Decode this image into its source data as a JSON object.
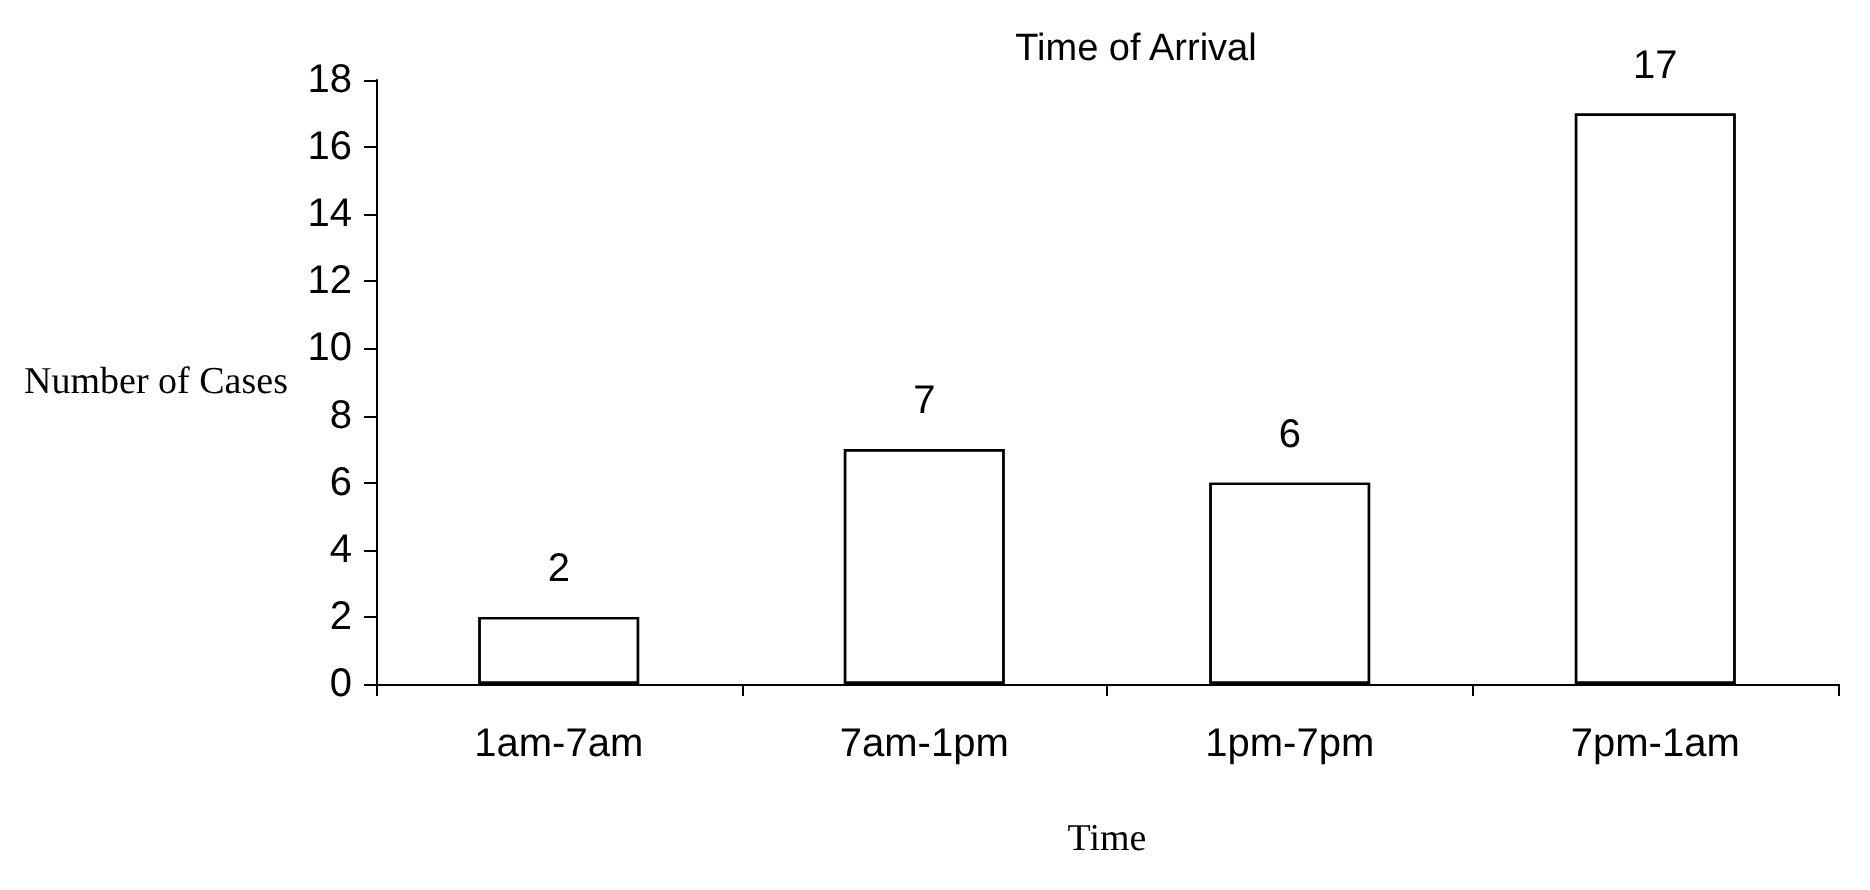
{
  "chart_data": {
    "type": "bar",
    "title": "Time of Arrival",
    "xlabel": "Time",
    "ylabel": "Number of Cases",
    "categories": [
      "1am-7am",
      "7am-1pm",
      "1pm-7pm",
      "7pm-1am"
    ],
    "values": [
      2,
      7,
      6,
      17
    ],
    "color": "#ffffff",
    "ylim": [
      0,
      18
    ],
    "yticks": [
      0,
      2,
      4,
      6,
      8,
      10,
      12,
      14,
      16,
      18
    ],
    "grid": false,
    "data_labels": true
  }
}
